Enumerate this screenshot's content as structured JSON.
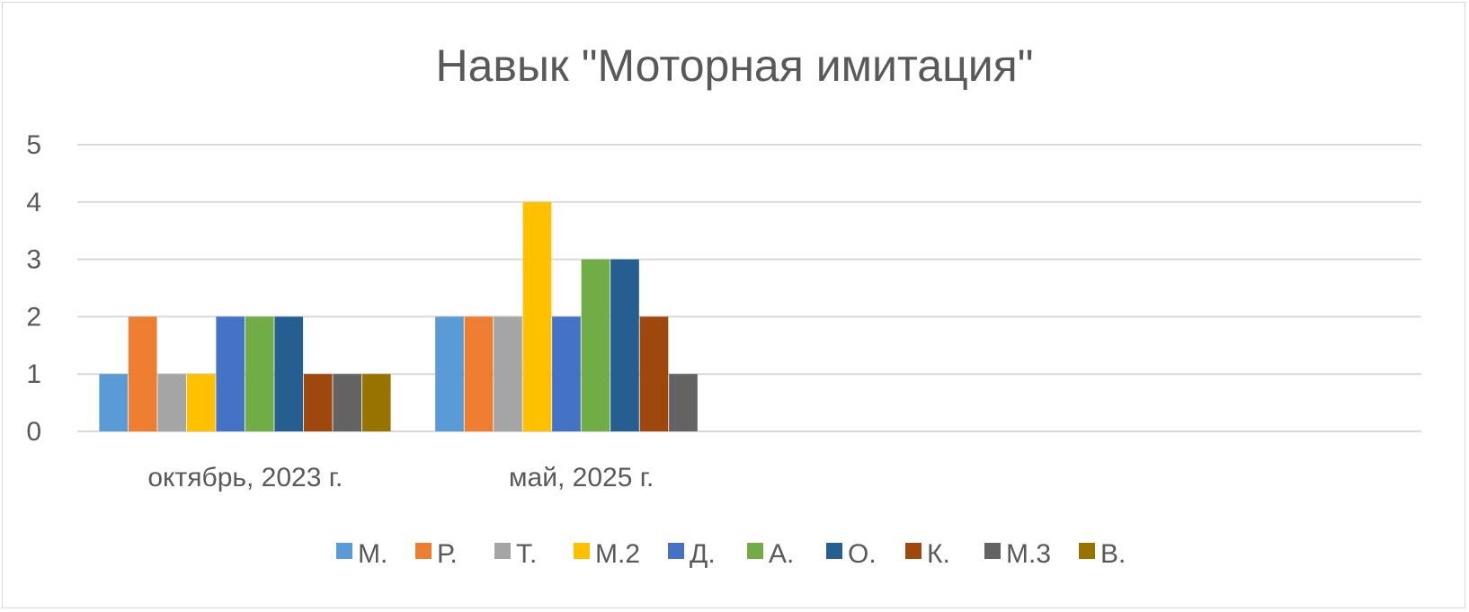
{
  "chart_data": {
    "type": "bar",
    "title": "Навык \"Моторная имитация\"",
    "xlabel": "",
    "ylabel": "",
    "ylim": [
      0,
      5
    ],
    "yticks": [
      "0",
      "1",
      "2",
      "3",
      "4",
      "5"
    ],
    "categories": [
      "октябрь, 2023 г.",
      "май, 2025 г.",
      "",
      ""
    ],
    "grid": true,
    "legend_position": "bottom",
    "series": [
      {
        "name": "М.",
        "color": "#5B9BD5",
        "values": [
          1,
          2,
          null,
          null
        ]
      },
      {
        "name": "Р.",
        "color": "#ED7D31",
        "values": [
          2,
          2,
          null,
          null
        ]
      },
      {
        "name": "Т.",
        "color": "#A5A5A5",
        "values": [
          1,
          2,
          null,
          null
        ]
      },
      {
        "name": "М.2",
        "color": "#FFC000",
        "values": [
          1,
          4,
          null,
          null
        ]
      },
      {
        "name": "Д.",
        "color": "#4472C4",
        "values": [
          2,
          2,
          null,
          null
        ]
      },
      {
        "name": "А.",
        "color": "#70AD47",
        "values": [
          2,
          3,
          null,
          null
        ]
      },
      {
        "name": "О.",
        "color": "#255E91",
        "values": [
          2,
          3,
          null,
          null
        ]
      },
      {
        "name": "К.",
        "color": "#9E480E",
        "values": [
          1,
          2,
          null,
          null
        ]
      },
      {
        "name": "М.3",
        "color": "#636363",
        "values": [
          1,
          1,
          null,
          null
        ]
      },
      {
        "name": "В.",
        "color": "#997300",
        "values": [
          1,
          null,
          null,
          null
        ]
      }
    ]
  },
  "colors": {
    "grid": "#d9d9d9",
    "text": "#595959",
    "title": "#595959"
  }
}
